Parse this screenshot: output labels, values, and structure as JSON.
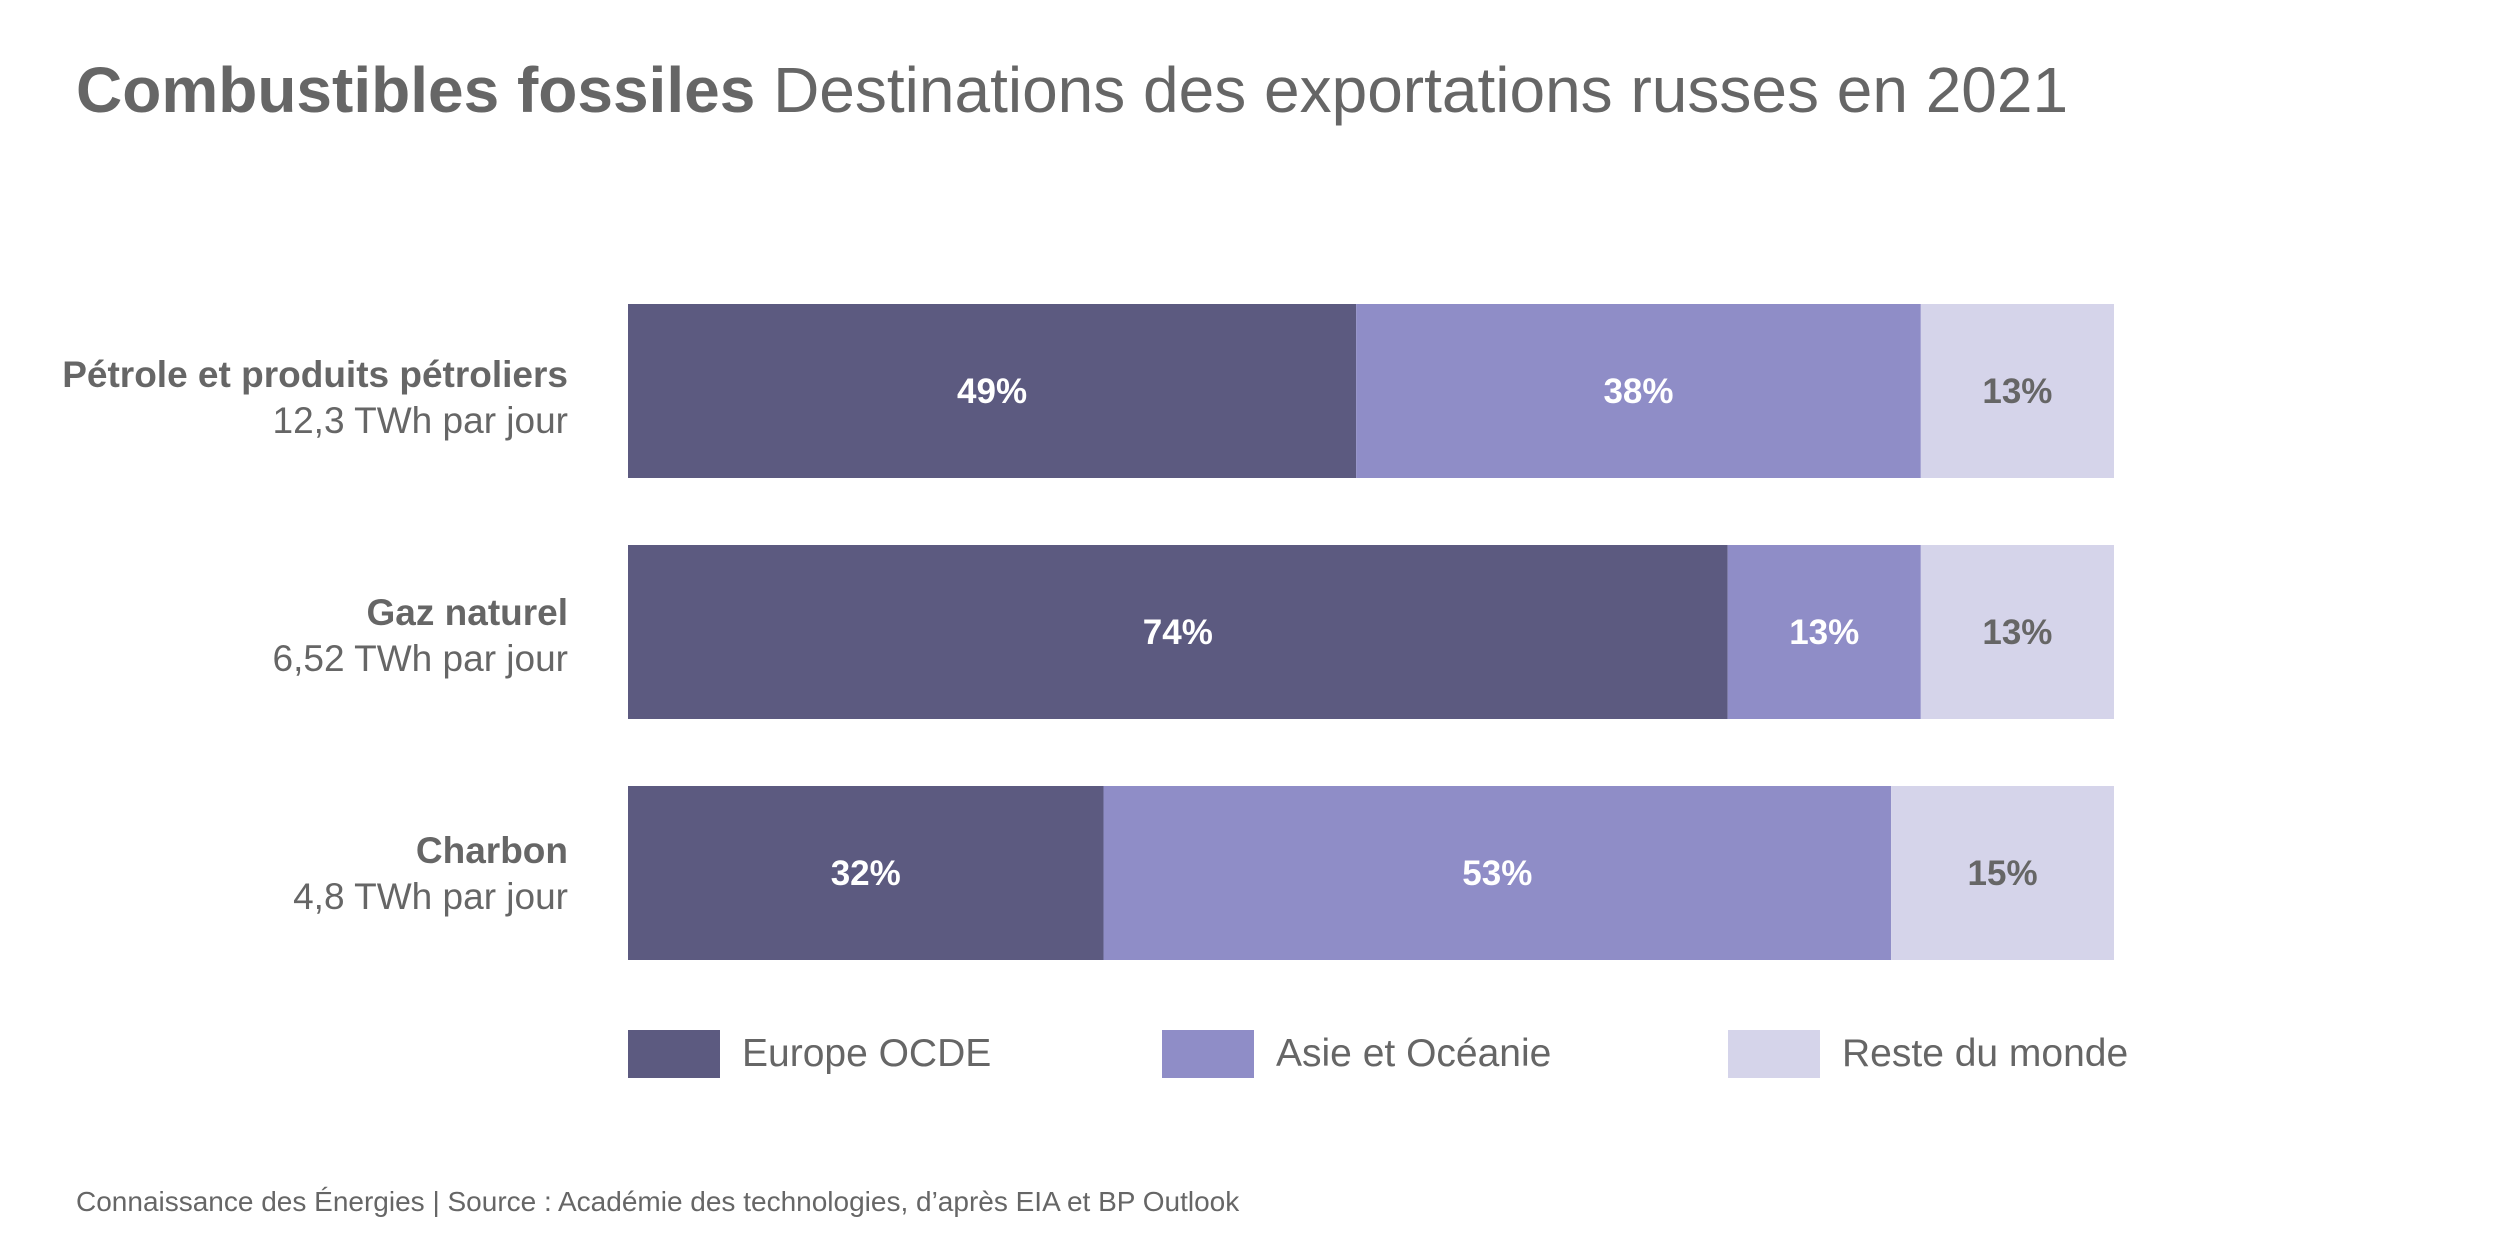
{
  "title": {
    "bold": "Combustibles fossiles",
    "light": "Destinations des exportations russes en 2021"
  },
  "rows": [
    {
      "name": "Pétrole et produits pétroliers",
      "sub": "12,3 TWh par jour"
    },
    {
      "name": "Gaz naturel",
      "sub": "6,52 TWh par jour"
    },
    {
      "name": "Charbon",
      "sub": "4,8 TWh par jour"
    }
  ],
  "legend": [
    {
      "label": "Europe OCDE",
      "color": "#5c5a80"
    },
    {
      "label": "Asie et Océanie",
      "color": "#8f8dc7"
    },
    {
      "label": "Reste du monde",
      "color": "#d5d4ea"
    }
  ],
  "footer": "Connaissance des Énergies | Source : Académie des technologies, d’après EIA et BP Outlook",
  "chart_data": {
    "type": "bar",
    "stacked": true,
    "orientation": "horizontal",
    "unit": "%",
    "categories": [
      "Pétrole et produits pétroliers",
      "Gaz naturel",
      "Charbon"
    ],
    "series": [
      {
        "name": "Europe OCDE",
        "color": "#5c5a80",
        "label_color": "#ffffff",
        "values": [
          49,
          74,
          32
        ]
      },
      {
        "name": "Asie et Océanie",
        "color": "#8f8dc7",
        "label_color": "#ffffff",
        "values": [
          38,
          13,
          53
        ]
      },
      {
        "name": "Reste du monde",
        "color": "#d5d4ea",
        "label_color": "#666666",
        "values": [
          13,
          13,
          15
        ]
      }
    ],
    "labels": [
      [
        "49%",
        "38%",
        "13%"
      ],
      [
        "74%",
        "13%",
        "13%"
      ],
      [
        "32%",
        "53%",
        "15%"
      ]
    ],
    "xlim": [
      0,
      100
    ],
    "title": "Combustibles fossiles Destinations des exportations russes en 2021",
    "legend_position": "bottom"
  }
}
